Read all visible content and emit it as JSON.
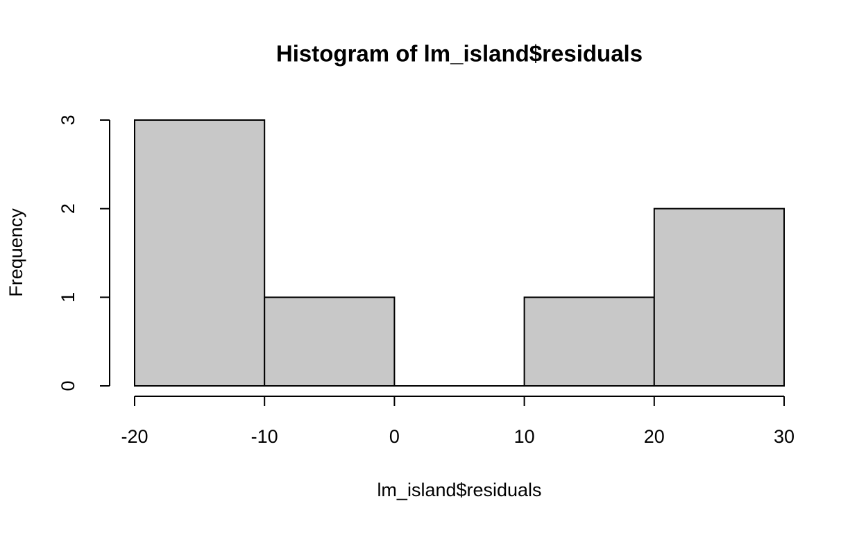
{
  "chart_data": {
    "type": "histogram",
    "title": "Histogram of lm_island$residuals",
    "xlabel": "lm_island$residuals",
    "ylabel": "Frequency",
    "bins": [
      -20,
      -10,
      0,
      10,
      20,
      30
    ],
    "counts": [
      3,
      1,
      0,
      1,
      2
    ],
    "color": "#c8c8c8",
    "xlim": [
      -20,
      30
    ],
    "ylim": [
      0,
      3
    ],
    "xticks": [
      -20,
      -10,
      0,
      10,
      20,
      30
    ],
    "yticks": [
      0,
      1,
      2,
      3
    ]
  }
}
